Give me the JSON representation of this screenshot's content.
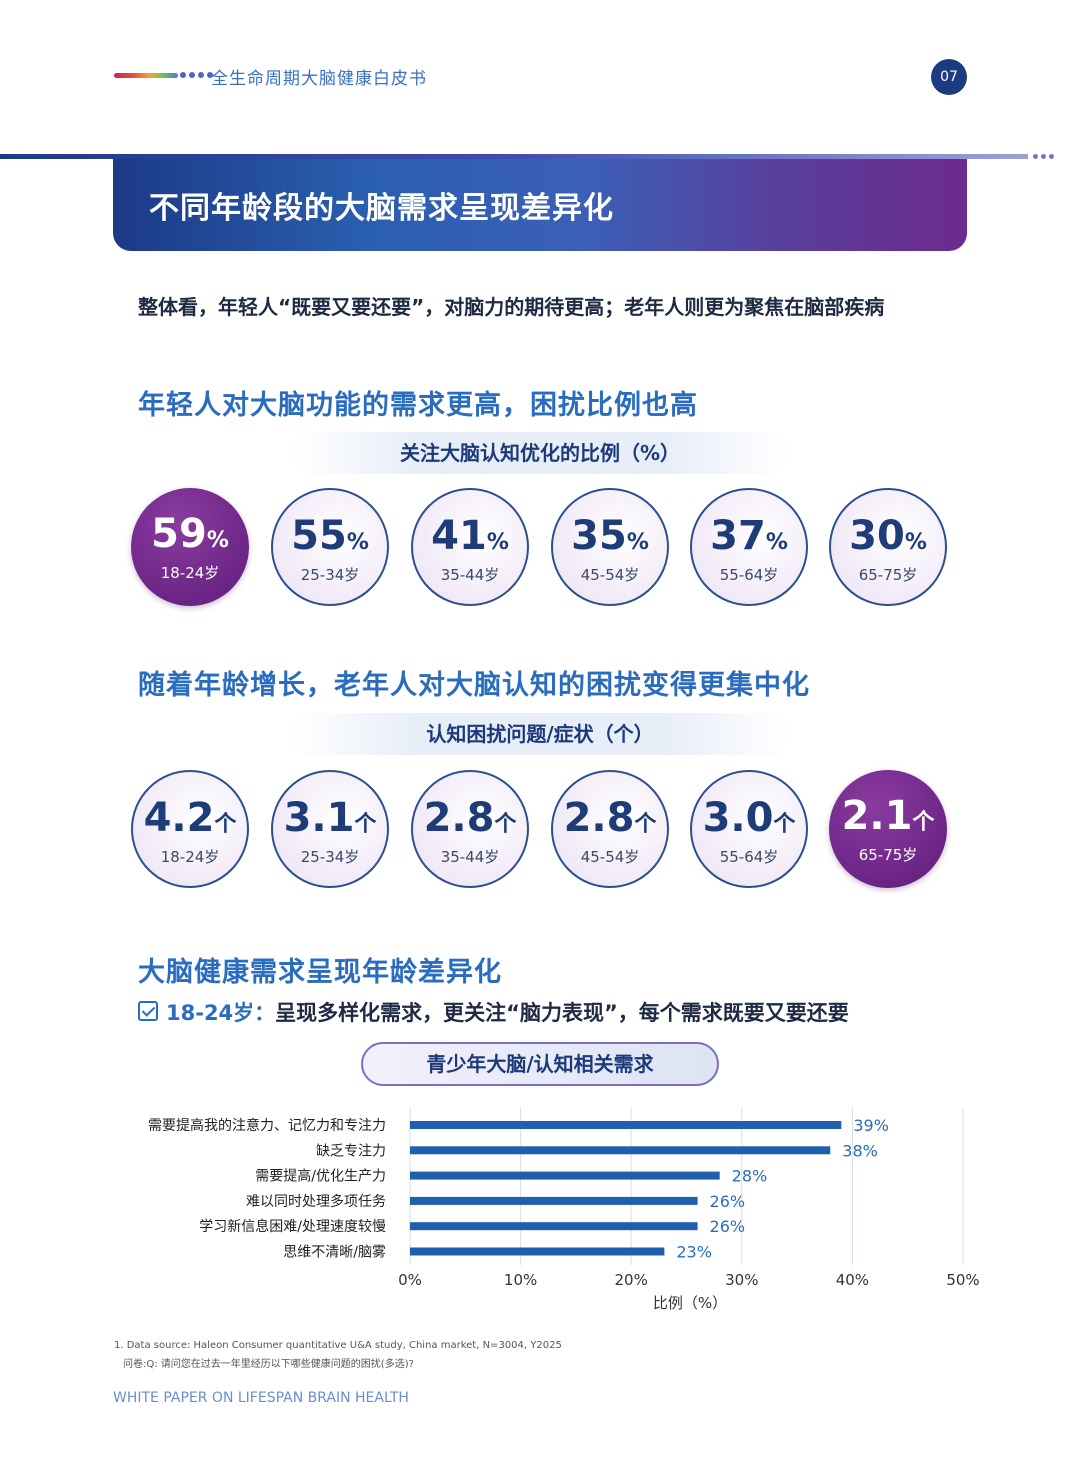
{
  "header": {
    "title": "全生命周期大脑健康白皮书",
    "page_number": "07"
  },
  "banner": {
    "title": "不同年龄段的大脑需求呈现差异化"
  },
  "intro": "整体看，年轻人“既要又要还要”，对脑力的期待更高；老年人则更为聚焦在脑部疾病",
  "section1": {
    "heading": "年轻人对大脑功能的需求更高，困扰比例也高",
    "subtitle": "关注大脑认知优化的比例（%）",
    "items": [
      {
        "value": "59",
        "unit": "%",
        "age": "18-24岁",
        "highlight": true
      },
      {
        "value": "55",
        "unit": "%",
        "age": "25-34岁",
        "highlight": false
      },
      {
        "value": "41",
        "unit": "%",
        "age": "35-44岁",
        "highlight": false
      },
      {
        "value": "35",
        "unit": "%",
        "age": "45-54岁",
        "highlight": false
      },
      {
        "value": "37",
        "unit": "%",
        "age": "55-64岁",
        "highlight": false
      },
      {
        "value": "30",
        "unit": "%",
        "age": "65-75岁",
        "highlight": false
      }
    ]
  },
  "section2": {
    "heading": "随着年龄增长，老年人对大脑认知的困扰变得更集中化",
    "subtitle": "认知困扰问题/症状（个）",
    "items": [
      {
        "value": "4.2",
        "unit": "个",
        "age": "18-24岁",
        "highlight": false
      },
      {
        "value": "3.1",
        "unit": "个",
        "age": "25-34岁",
        "highlight": false
      },
      {
        "value": "2.8",
        "unit": "个",
        "age": "35-44岁",
        "highlight": false
      },
      {
        "value": "2.8",
        "unit": "个",
        "age": "45-54岁",
        "highlight": false
      },
      {
        "value": "3.0",
        "unit": "个",
        "age": "55-64岁",
        "highlight": false
      },
      {
        "value": "2.1",
        "unit": "个",
        "age": "65-75岁",
        "highlight": true
      }
    ]
  },
  "section3": {
    "heading": "大脑健康需求呈现年龄差异化",
    "sub_age": "18-24岁：",
    "sub_text": "呈现多样化需求，更关注“脑力表现”，每个需求既要又要还要",
    "chart_title": "青少年大脑/认知相关需求"
  },
  "chart_data": {
    "type": "bar",
    "orientation": "horizontal",
    "title": "青少年大脑/认知相关需求",
    "categories": [
      "需要提高我的注意力、记忆力和专注力",
      "缺乏专注力",
      "需要提高/优化生产力",
      "难以同时处理多项任务",
      "学习新信息困难/处理速度较慢",
      "思维不清晰/脑雾"
    ],
    "values": [
      39,
      38,
      28,
      26,
      26,
      23
    ],
    "value_labels": [
      "39%",
      "38%",
      "28%",
      "26%",
      "26%",
      "23%"
    ],
    "xticks": [
      "0%",
      "10%",
      "20%",
      "30%",
      "40%",
      "50%"
    ],
    "xlim": [
      0,
      50
    ],
    "xlabel": "比例（%）",
    "grid": true,
    "color": "#1f5fae"
  },
  "footnote": {
    "source": "1. Data source: Haleon Consumer quantitative U&A study, China market, N=3004, Y2025",
    "question": "问卷:Q: 请问您在过去一年里经历以下哪些健康问题的困扰(多选)?"
  },
  "footer_brand": "WHITE PAPER ON LIFESPAN BRAIN HEALTH",
  "colors": {
    "primary_blue": "#2a6cc0",
    "dark_navy": "#1c3b82",
    "purple": "#6c2586",
    "bar_blue": "#1f5fae"
  }
}
